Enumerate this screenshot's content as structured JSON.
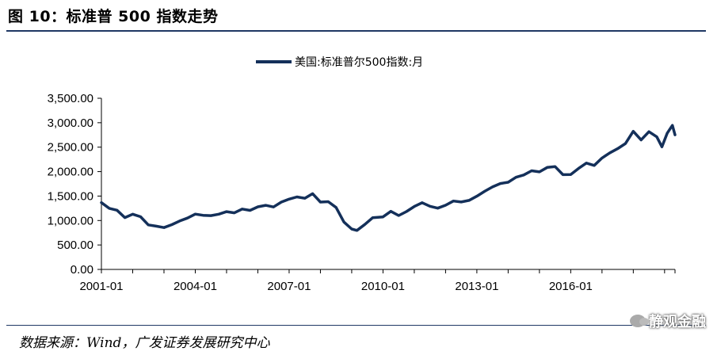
{
  "header": {
    "title": "图 10：标准普 500 指数走势"
  },
  "footer": {
    "source": "数据来源：Wind，广发证券发展研究中心"
  },
  "watermark": {
    "text": "静观金融",
    "icon": "wechat-icon"
  },
  "colors": {
    "line": "#14305a",
    "rule": "#1f3864",
    "axis": "#000000"
  },
  "chart_data": {
    "type": "line",
    "legend": {
      "position": "top-center"
    },
    "grid": false,
    "x_ticks": [
      "2001-01",
      "2004-01",
      "2007-01",
      "2010-01",
      "2013-01",
      "2016-01"
    ],
    "ylim": [
      0,
      3500
    ],
    "y_ticks": [
      "0.00",
      "500.00",
      "1,000.00",
      "1,500.00",
      "2,000.00",
      "2,500.00",
      "3,000.00",
      "3,500.00"
    ],
    "series": [
      {
        "name": "美国:标准普尔500指数:月",
        "x": [
          "2001-01",
          "2001-04",
          "2001-07",
          "2001-10",
          "2002-01",
          "2002-04",
          "2002-07",
          "2002-10",
          "2003-01",
          "2003-04",
          "2003-07",
          "2003-10",
          "2004-01",
          "2004-04",
          "2004-07",
          "2004-10",
          "2005-01",
          "2005-04",
          "2005-07",
          "2005-10",
          "2006-01",
          "2006-04",
          "2006-07",
          "2006-10",
          "2007-01",
          "2007-04",
          "2007-07",
          "2007-10",
          "2008-01",
          "2008-04",
          "2008-07",
          "2008-10",
          "2009-01",
          "2009-03",
          "2009-06",
          "2009-09",
          "2010-01",
          "2010-04",
          "2010-07",
          "2010-10",
          "2011-01",
          "2011-04",
          "2011-07",
          "2011-10",
          "2012-01",
          "2012-04",
          "2012-07",
          "2012-10",
          "2013-01",
          "2013-04",
          "2013-07",
          "2013-10",
          "2014-01",
          "2014-04",
          "2014-07",
          "2014-10",
          "2015-01",
          "2015-04",
          "2015-07",
          "2015-10",
          "2016-01",
          "2016-04",
          "2016-07",
          "2016-10",
          "2017-01",
          "2017-04",
          "2017-07",
          "2017-10",
          "2018-01",
          "2018-04",
          "2018-07",
          "2018-10",
          "2018-12",
          "2019-02",
          "2019-04",
          "2019-05"
        ],
        "values": [
          1366,
          1250,
          1211,
          1060,
          1130,
          1077,
          911,
          885,
          856,
          916,
          990,
          1050,
          1131,
          1107,
          1101,
          1130,
          1181,
          1157,
          1234,
          1207,
          1280,
          1311,
          1277,
          1378,
          1438,
          1482,
          1455,
          1549,
          1378,
          1386,
          1267,
          969,
          826,
          798,
          919,
          1057,
          1074,
          1187,
          1102,
          1183,
          1286,
          1364,
          1292,
          1253,
          1312,
          1398,
          1379,
          1412,
          1498,
          1598,
          1686,
          1757,
          1783,
          1884,
          1931,
          2018,
          1995,
          2086,
          2104,
          1938,
          1940,
          2065,
          2174,
          2126,
          2279,
          2384,
          2470,
          2575,
          2824,
          2648,
          2816,
          2711,
          2507,
          2784,
          2946,
          2752
        ]
      }
    ]
  }
}
